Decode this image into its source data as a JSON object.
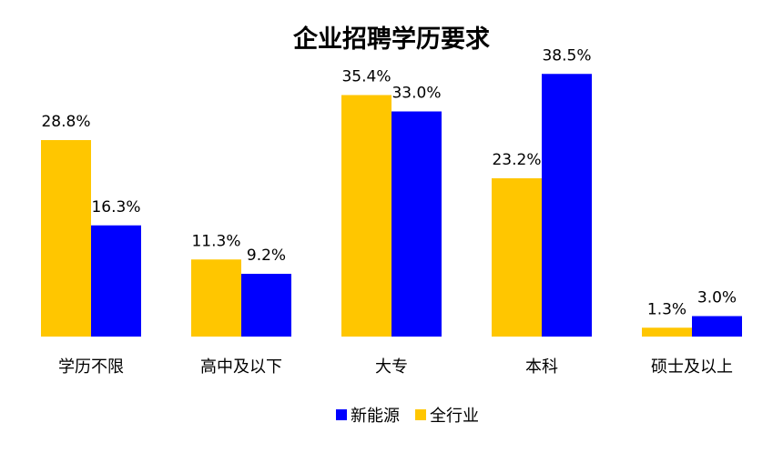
{
  "chart_data": {
    "type": "bar",
    "title": "企业招聘学历要求",
    "categories": [
      "学历不限",
      "高中及以下",
      "大专",
      "本科",
      "硕士及以上"
    ],
    "series": [
      {
        "name": "全行业",
        "color": "#FFC600",
        "values": [
          28.8,
          11.3,
          35.4,
          23.2,
          1.3
        ],
        "labels": [
          "28.8%",
          "11.3%",
          "35.4%",
          "23.2%",
          "1.3%"
        ]
      },
      {
        "name": "新能源",
        "color": "#0000FF",
        "values": [
          16.3,
          9.2,
          33.0,
          38.5,
          3.0
        ],
        "labels": [
          "16.3%",
          "9.2%",
          "33.0%",
          "38.5%",
          "3.0%"
        ]
      }
    ],
    "xlabel": "",
    "ylabel": "",
    "ylim": [
      0,
      40
    ],
    "grid": false,
    "legend": {
      "position": "bottom",
      "order": [
        "新能源",
        "全行业"
      ]
    }
  }
}
